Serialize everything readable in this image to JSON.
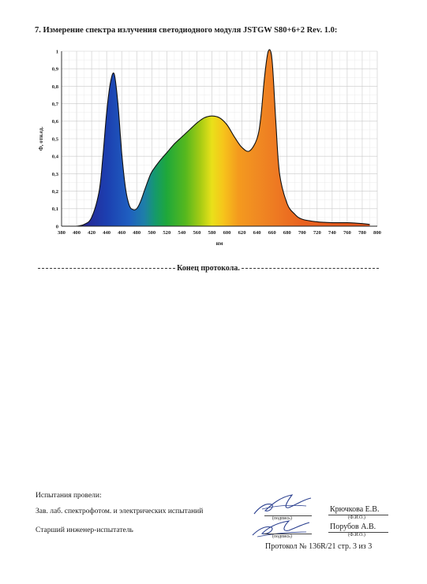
{
  "section_title": "7. Измерение спектра излучения светодиодного модуля JSTGW S80+6+2 Rev. 1.0:",
  "chart_data": {
    "type": "area",
    "title": "",
    "xlabel": "нм",
    "ylabel": "Ф, отн.ед.",
    "xlim": [
      380,
      800
    ],
    "ylim": [
      0,
      1
    ],
    "x_ticks": [
      "380",
      "400",
      "420",
      "440",
      "460",
      "480",
      "500",
      "520",
      "540",
      "560",
      "580",
      "600",
      "620",
      "640",
      "660",
      "680",
      "700",
      "720",
      "740",
      "760",
      "780",
      "800"
    ],
    "y_ticks": [
      "0",
      "0,1",
      "0,2",
      "0,3",
      "0,4",
      "0,5",
      "0,6",
      "0,7",
      "0,8",
      "0,9",
      "1"
    ],
    "grid": true,
    "x": [
      400,
      410,
      420,
      430,
      435,
      440,
      445,
      450,
      455,
      460,
      465,
      470,
      475,
      480,
      485,
      490,
      495,
      500,
      510,
      520,
      530,
      540,
      550,
      560,
      570,
      580,
      590,
      600,
      610,
      620,
      630,
      640,
      645,
      650,
      655,
      660,
      665,
      670,
      680,
      690,
      700,
      720,
      740,
      760,
      780,
      790
    ],
    "y": [
      0,
      0.01,
      0.05,
      0.2,
      0.4,
      0.65,
      0.82,
      0.87,
      0.7,
      0.42,
      0.22,
      0.12,
      0.095,
      0.1,
      0.14,
      0.2,
      0.26,
      0.31,
      0.37,
      0.42,
      0.47,
      0.51,
      0.55,
      0.59,
      0.62,
      0.63,
      0.62,
      0.58,
      0.51,
      0.45,
      0.43,
      0.5,
      0.62,
      0.85,
      1,
      0.95,
      0.6,
      0.3,
      0.13,
      0.07,
      0.04,
      0.025,
      0.02,
      0.02,
      0.015,
      0.01
    ]
  },
  "end_of_protocol": "Конец протокола.",
  "signatures": {
    "header": "Испытания провели:",
    "role1": "Зав. лаб. спектрофотом. и электрических испытаний",
    "role2": "Старший инженер-испытатель",
    "name1": "Крючкова Е.В.",
    "name2": "Порубов А.В.",
    "sign_caption": "(подпись)",
    "fio_caption": "(Ф.И.О.)"
  },
  "footer": "Протокол № 136R/21 стр. 3 из 3"
}
